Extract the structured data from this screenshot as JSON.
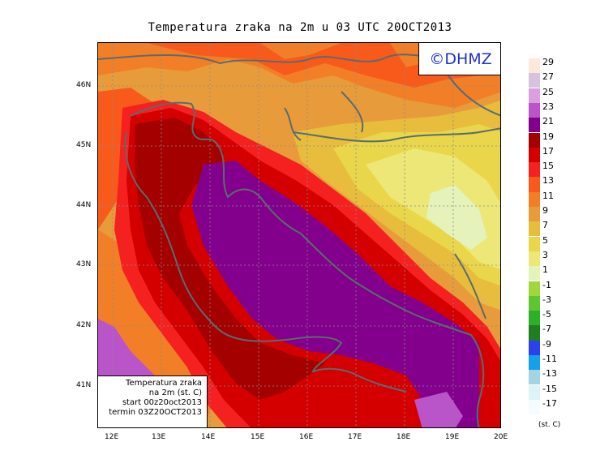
{
  "title": "Temperatura zraka na 2m u 03 UTC 20OCT2013",
  "logo": "©DHMZ",
  "info": {
    "line1": "Temperatura zraka",
    "line2": "na 2m (st. C)",
    "line3": "start 00z20oct2013",
    "line4": "termin 03Z20OCT2013"
  },
  "lat_labels": [
    "46N",
    "45N",
    "44N",
    "43N",
    "42N",
    "41N"
  ],
  "lon_labels": [
    "12E",
    "13E",
    "14E",
    "15E",
    "16E",
    "17E",
    "18E",
    "19E",
    "20E"
  ],
  "legend": {
    "units": "(st. C)",
    "levels": [
      {
        "label": "29",
        "color": "#fce9dc"
      },
      {
        "label": "27",
        "color": "#d8c3df"
      },
      {
        "label": "25",
        "color": "#d99fdf"
      },
      {
        "label": "23",
        "color": "#b954c9"
      },
      {
        "label": "21",
        "color": "#82008b"
      },
      {
        "label": "19",
        "color": "#a40000"
      },
      {
        "label": "17",
        "color": "#d40000"
      },
      {
        "label": "15",
        "color": "#f52020"
      },
      {
        "label": "13",
        "color": "#f85a1c"
      },
      {
        "label": "11",
        "color": "#f27f27"
      },
      {
        "label": "9",
        "color": "#e89b3b"
      },
      {
        "label": "7",
        "color": "#e8bc3c"
      },
      {
        "label": "5",
        "color": "#e9d64a"
      },
      {
        "label": "3",
        "color": "#ece777"
      },
      {
        "label": "1",
        "color": "#e5f2ba"
      },
      {
        "label": "-1",
        "color": "#9fd73d"
      },
      {
        "label": "-3",
        "color": "#5fc531"
      },
      {
        "label": "-5",
        "color": "#2fae2a"
      },
      {
        "label": "-7",
        "color": "#1f7f1f"
      },
      {
        "label": "-9",
        "color": "#2a41ee"
      },
      {
        "label": "-11",
        "color": "#16a0e8"
      },
      {
        "label": "-13",
        "color": "#a3d4e4"
      },
      {
        "label": "-15",
        "color": "#ddf3f6"
      },
      {
        "label": "-17",
        "color": "#f5fcff"
      }
    ]
  }
}
